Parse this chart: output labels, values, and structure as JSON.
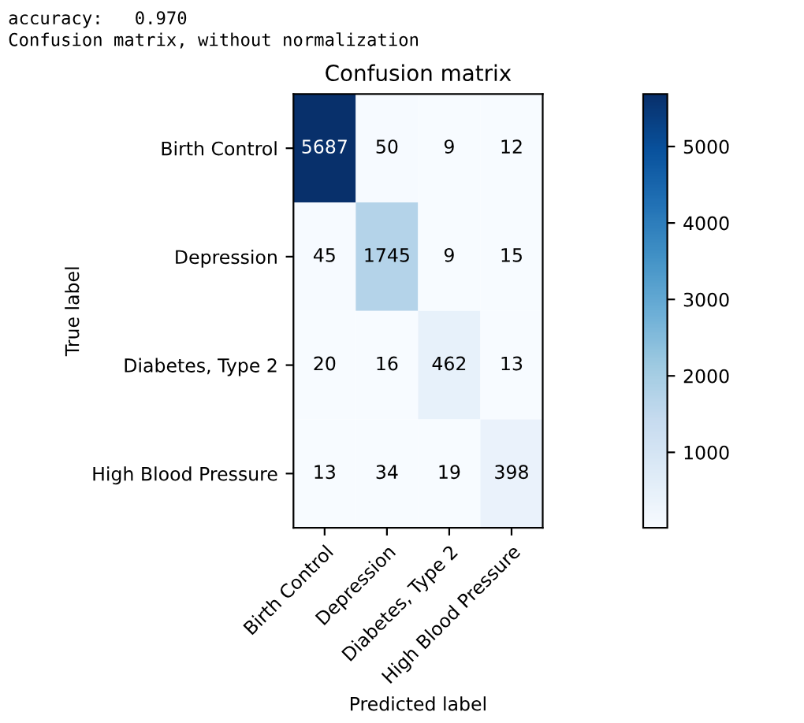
{
  "chart_data": {
    "type": "heatmap",
    "title": "Confusion matrix",
    "xlabel": "Predicted label",
    "ylabel": "True label",
    "annotations": [
      "accuracy:   0.970",
      "Confusion matrix, without normalization"
    ],
    "categories": [
      "Birth Control",
      "Depression",
      "Diabetes, Type 2",
      "High Blood Pressure"
    ],
    "y_categories": [
      "Birth Control",
      "Depression",
      "Diabetes, Type 2",
      "High Blood Pressure"
    ],
    "cells": [
      [
        5687,
        50,
        9,
        12
      ],
      [
        45,
        1745,
        9,
        15
      ],
      [
        20,
        16,
        462,
        13
      ],
      [
        13,
        34,
        19,
        398
      ]
    ],
    "clim": [
      13,
      5687
    ],
    "cticks": [
      1000,
      2000,
      3000,
      4000,
      5000
    ],
    "data_labels": true,
    "grid": false
  }
}
